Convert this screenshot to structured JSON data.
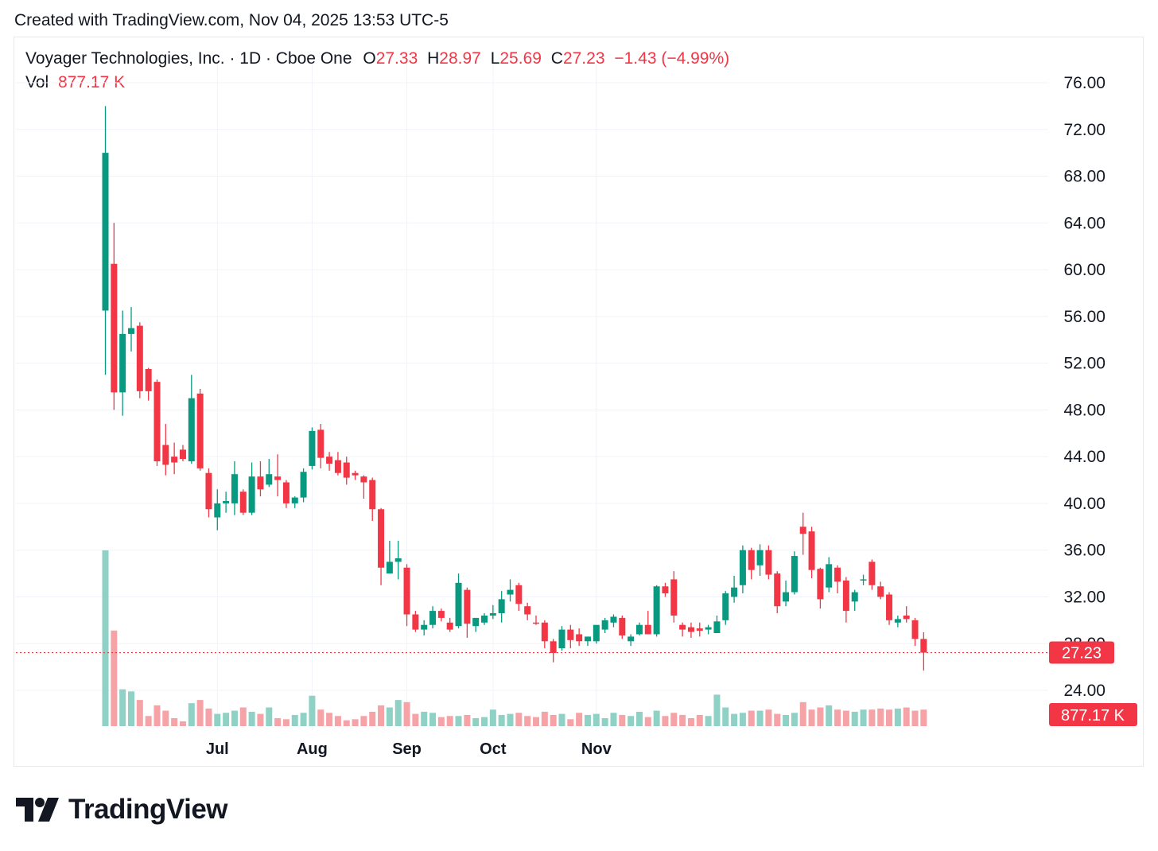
{
  "caption": "Created with TradingView.com, Nov 04, 2025 13:53 UTC-5",
  "legend": {
    "symbol": "Voyager Technologies, Inc. · 1D · Cboe One",
    "o_label": "O",
    "o_value": "27.33",
    "h_label": "H",
    "h_value": "28.97",
    "l_label": "L",
    "l_value": "25.69",
    "c_label": "C",
    "c_value": "27.23",
    "change": "−1.43 (−4.99%)",
    "vol_label": "Vol",
    "vol_value": "877.17 K"
  },
  "brand": {
    "name": "TradingView",
    "icon": "tradingview-logo-icon"
  },
  "colors": {
    "up": "#089981",
    "down": "#f23645",
    "up_vol": "#8fd1c5",
    "down_vol": "#f5a3a7",
    "grid": "#f0f3fa",
    "price_tag": "#f23645"
  },
  "chart_data": {
    "type": "candlestick",
    "y_axis": {
      "min": 21,
      "max": 77.5,
      "ticks": [
        "76.00",
        "72.00",
        "68.00",
        "64.00",
        "60.00",
        "56.00",
        "52.00",
        "48.00",
        "44.00",
        "40.00",
        "36.00",
        "32.00",
        "28.00",
        "24.00"
      ]
    },
    "x_axis": {
      "labels": [
        {
          "label": "Jul",
          "index": 13
        },
        {
          "label": "Aug",
          "index": 24
        },
        {
          "label": "Sep",
          "index": 35
        },
        {
          "label": "Oct",
          "index": 45
        },
        {
          "label": "Nov",
          "index": 57
        }
      ]
    },
    "last_price": {
      "value": 27.23,
      "label": "27.23"
    },
    "last_volume": {
      "label": "877.17 K"
    },
    "candles": [
      {
        "o": 56.5,
        "h": 74,
        "l": 51,
        "c": 70
      },
      {
        "o": 60.5,
        "h": 64,
        "l": 48,
        "c": 49.5
      },
      {
        "o": 49.5,
        "h": 56.5,
        "l": 47.5,
        "c": 54.5
      },
      {
        "o": 54.5,
        "h": 56.8,
        "l": 53,
        "c": 55
      },
      {
        "o": 55.2,
        "h": 55.5,
        "l": 49,
        "c": 49.6
      },
      {
        "o": 51.5,
        "h": 51.6,
        "l": 48.8,
        "c": 49.6
      },
      {
        "o": 50.4,
        "h": 50.6,
        "l": 43.2,
        "c": 43.6
      },
      {
        "o": 45,
        "h": 46.8,
        "l": 42.4,
        "c": 43.3
      },
      {
        "o": 44,
        "h": 45.2,
        "l": 42.5,
        "c": 43.5
      },
      {
        "o": 44.6,
        "h": 45,
        "l": 43.6,
        "c": 43.8
      },
      {
        "o": 43.6,
        "h": 51,
        "l": 43.4,
        "c": 49
      },
      {
        "o": 49.4,
        "h": 49.8,
        "l": 42.8,
        "c": 43
      },
      {
        "o": 42.6,
        "h": 43,
        "l": 38.8,
        "c": 39.5
      },
      {
        "o": 38.8,
        "h": 41.2,
        "l": 37.7,
        "c": 40
      },
      {
        "o": 40,
        "h": 41,
        "l": 39.2,
        "c": 40.2
      },
      {
        "o": 40,
        "h": 43.6,
        "l": 39,
        "c": 42.5
      },
      {
        "o": 41,
        "h": 41.2,
        "l": 39,
        "c": 39.2
      },
      {
        "o": 39.2,
        "h": 43.5,
        "l": 39,
        "c": 42.3
      },
      {
        "o": 42.3,
        "h": 43.6,
        "l": 40.6,
        "c": 41.2
      },
      {
        "o": 41.6,
        "h": 43.8,
        "l": 41.4,
        "c": 42.5
      },
      {
        "o": 42.3,
        "h": 44.2,
        "l": 40.6,
        "c": 42
      },
      {
        "o": 41.8,
        "h": 42,
        "l": 39.6,
        "c": 40
      },
      {
        "o": 40,
        "h": 40.6,
        "l": 39.6,
        "c": 40.5
      },
      {
        "o": 40.5,
        "h": 43,
        "l": 40.1,
        "c": 42.7
      },
      {
        "o": 43.2,
        "h": 46.5,
        "l": 42.9,
        "c": 46.2
      },
      {
        "o": 46.3,
        "h": 46.8,
        "l": 43,
        "c": 43.9
      },
      {
        "o": 44,
        "h": 44.4,
        "l": 42.8,
        "c": 43.4
      },
      {
        "o": 43.7,
        "h": 44.4,
        "l": 42.4,
        "c": 42.6
      },
      {
        "o": 43.5,
        "h": 44,
        "l": 41.6,
        "c": 42.2
      },
      {
        "o": 42.6,
        "h": 42.8,
        "l": 42,
        "c": 42.4
      },
      {
        "o": 42.3,
        "h": 42.4,
        "l": 40.4,
        "c": 41.8
      },
      {
        "o": 42,
        "h": 42.2,
        "l": 38.5,
        "c": 39.5
      }
    ],
    "candles_note": "candles continue",
    "volumes": []
  }
}
